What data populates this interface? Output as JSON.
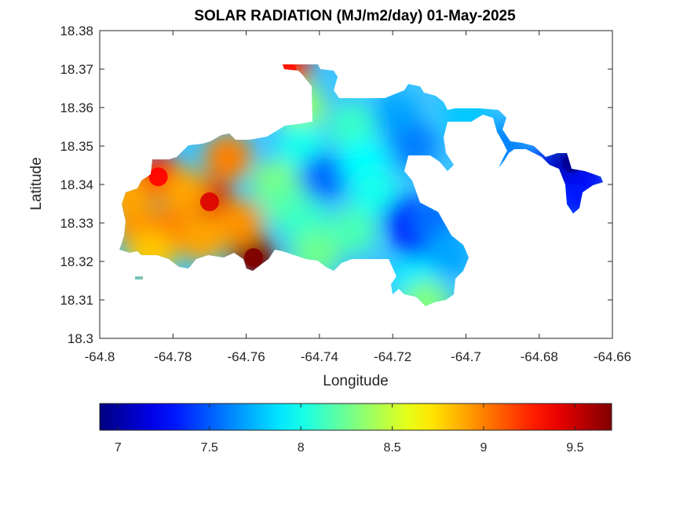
{
  "chart_data": {
    "type": "heatmap",
    "title": "SOLAR RADIATION (MJ/m2/day) 01-May-2025",
    "xlabel": "Longitude",
    "ylabel": "Latitude",
    "xlim": [
      -64.8,
      -64.66
    ],
    "ylim": [
      18.3,
      18.38
    ],
    "x_ticks": [
      "-64.8",
      "-64.78",
      "-64.76",
      "-64.74",
      "-64.72",
      "-64.7",
      "-64.68",
      "-64.66"
    ],
    "x_tick_values": [
      -64.8,
      -64.78,
      -64.76,
      -64.74,
      -64.72,
      -64.7,
      -64.68,
      -64.66
    ],
    "y_ticks": [
      "18.3",
      "18.31",
      "18.32",
      "18.33",
      "18.34",
      "18.35",
      "18.36",
      "18.37",
      "18.38"
    ],
    "y_tick_values": [
      18.3,
      18.31,
      18.32,
      18.33,
      18.34,
      18.35,
      18.36,
      18.37,
      18.38
    ],
    "colormap": "jet",
    "colorbar": {
      "orientation": "horizontal",
      "placement": "bottom",
      "range": [
        6.9,
        9.7
      ],
      "ticks": [
        "7",
        "7.5",
        "8",
        "8.5",
        "9",
        "9.5"
      ],
      "tick_values": [
        7,
        7.5,
        8,
        8.5,
        9,
        9.5
      ]
    },
    "hotspots": [
      {
        "lon": -64.758,
        "lat": 18.321,
        "value": 9.7
      },
      {
        "lon": -64.77,
        "lat": 18.3355,
        "value": 9.45
      },
      {
        "lon": -64.784,
        "lat": 18.342,
        "value": 9.35
      },
      {
        "lon": -64.749,
        "lat": 18.37,
        "value": 9.3
      },
      {
        "lon": -64.777,
        "lat": 18.338,
        "value": 8.9
      },
      {
        "lon": -64.79,
        "lat": 18.33,
        "value": 8.95
      },
      {
        "lon": -64.792,
        "lat": 18.337,
        "value": 8.9
      },
      {
        "lon": -64.781,
        "lat": 18.328,
        "value": 9.0
      },
      {
        "lon": -64.765,
        "lat": 18.347,
        "value": 9.0
      },
      {
        "lon": -64.762,
        "lat": 18.33,
        "value": 8.95
      },
      {
        "lon": -64.772,
        "lat": 18.326,
        "value": 8.9
      },
      {
        "lon": -64.786,
        "lat": 18.322,
        "value": 8.8
      },
      {
        "lon": -64.752,
        "lat": 18.34,
        "value": 8.3
      },
      {
        "lon": -64.749,
        "lat": 18.335,
        "value": 8.2
      },
      {
        "lon": -64.745,
        "lat": 18.36,
        "value": 8.35
      },
      {
        "lon": -64.745,
        "lat": 18.35,
        "value": 8.0
      },
      {
        "lon": -64.739,
        "lat": 18.342,
        "value": 7.55
      },
      {
        "lon": -64.744,
        "lat": 18.33,
        "value": 8.1
      },
      {
        "lon": -64.731,
        "lat": 18.328,
        "value": 8.15
      },
      {
        "lon": -64.741,
        "lat": 18.322,
        "value": 8.25
      },
      {
        "lon": -64.731,
        "lat": 18.355,
        "value": 8.1
      },
      {
        "lon": -64.728,
        "lat": 18.346,
        "value": 7.95
      },
      {
        "lon": -64.725,
        "lat": 18.338,
        "value": 8.0
      },
      {
        "lon": -64.719,
        "lat": 18.358,
        "value": 7.7
      },
      {
        "lon": -64.714,
        "lat": 18.35,
        "value": 7.6
      },
      {
        "lon": -64.716,
        "lat": 18.331,
        "value": 7.35
      },
      {
        "lon": -64.713,
        "lat": 18.326,
        "value": 7.3
      },
      {
        "lon": -64.709,
        "lat": 18.331,
        "value": 7.55
      },
      {
        "lon": -64.705,
        "lat": 18.322,
        "value": 7.7
      },
      {
        "lon": -64.714,
        "lat": 18.315,
        "value": 7.9
      },
      {
        "lon": -64.711,
        "lat": 18.309,
        "value": 8.3
      },
      {
        "lon": -64.7,
        "lat": 18.358,
        "value": 7.8
      },
      {
        "lon": -64.69,
        "lat": 18.35,
        "value": 7.6
      },
      {
        "lon": -64.678,
        "lat": 18.344,
        "value": 7.35
      },
      {
        "lon": -64.671,
        "lat": 18.3455,
        "value": 6.95
      },
      {
        "lon": -64.667,
        "lat": 18.34,
        "value": 7.2
      },
      {
        "lon": -64.67,
        "lat": 18.336,
        "value": 7.3
      }
    ]
  }
}
